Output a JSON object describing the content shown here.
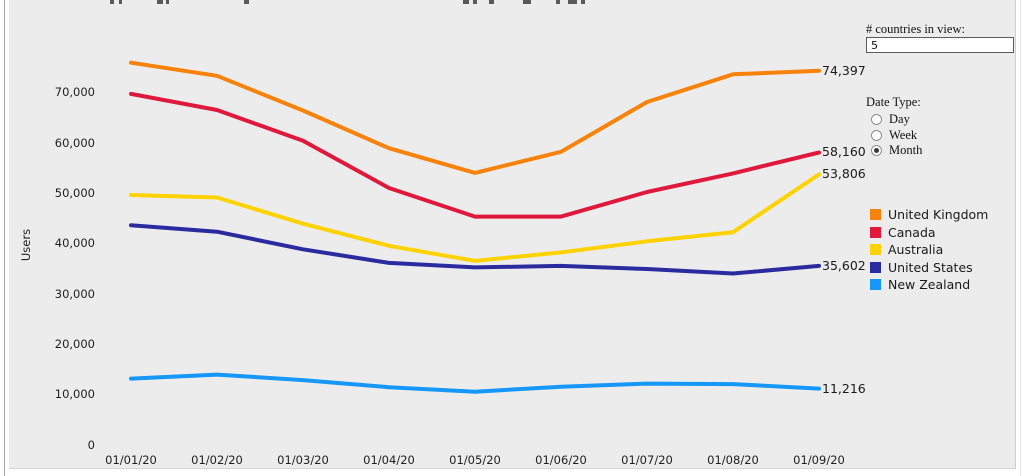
{
  "controls": {
    "countries_label": "# countries in view:",
    "countries_value": "5",
    "date_type_label": "Date Type:",
    "date_options": [
      {
        "label": "Day",
        "selected": false
      },
      {
        "label": "Week",
        "selected": false
      },
      {
        "label": "Month",
        "selected": true
      }
    ]
  },
  "chart_data": {
    "type": "line",
    "title": "",
    "ylabel": "Users",
    "xlabel": "",
    "x": [
      "01/01/20",
      "01/02/20",
      "01/03/20",
      "01/04/20",
      "01/05/20",
      "01/06/20",
      "01/07/20",
      "01/08/20",
      "01/09/20"
    ],
    "yticks": [
      0,
      10000,
      20000,
      30000,
      40000,
      50000,
      60000,
      70000
    ],
    "ylim": [
      0,
      80000
    ],
    "grid": false,
    "legend_position": "right",
    "series": [
      {
        "name": "United Kingdom",
        "color": "#F8820A",
        "end_label": "74,397",
        "values": [
          76000,
          73400,
          66500,
          59000,
          54100,
          58300,
          68200,
          73700,
          74397
        ]
      },
      {
        "name": "Canada",
        "color": "#E0183C",
        "end_label": "58,160",
        "values": [
          69800,
          66600,
          60500,
          51100,
          45400,
          45400,
          50300,
          54000,
          58160
        ]
      },
      {
        "name": "Australia",
        "color": "#FFD200",
        "end_label": "53,806",
        "values": [
          49700,
          49200,
          44000,
          39600,
          36600,
          38300,
          40500,
          42300,
          53806
        ]
      },
      {
        "name": "United States",
        "color": "#2B2BA0",
        "end_label": "35,602",
        "values": [
          43700,
          42400,
          38900,
          36200,
          35300,
          35600,
          35000,
          34100,
          35602
        ]
      },
      {
        "name": "New Zealand",
        "color": "#1697FA",
        "end_label": "11,216",
        "values": [
          13200,
          14000,
          12900,
          11500,
          10600,
          11600,
          12200,
          12100,
          11216
        ]
      }
    ]
  }
}
